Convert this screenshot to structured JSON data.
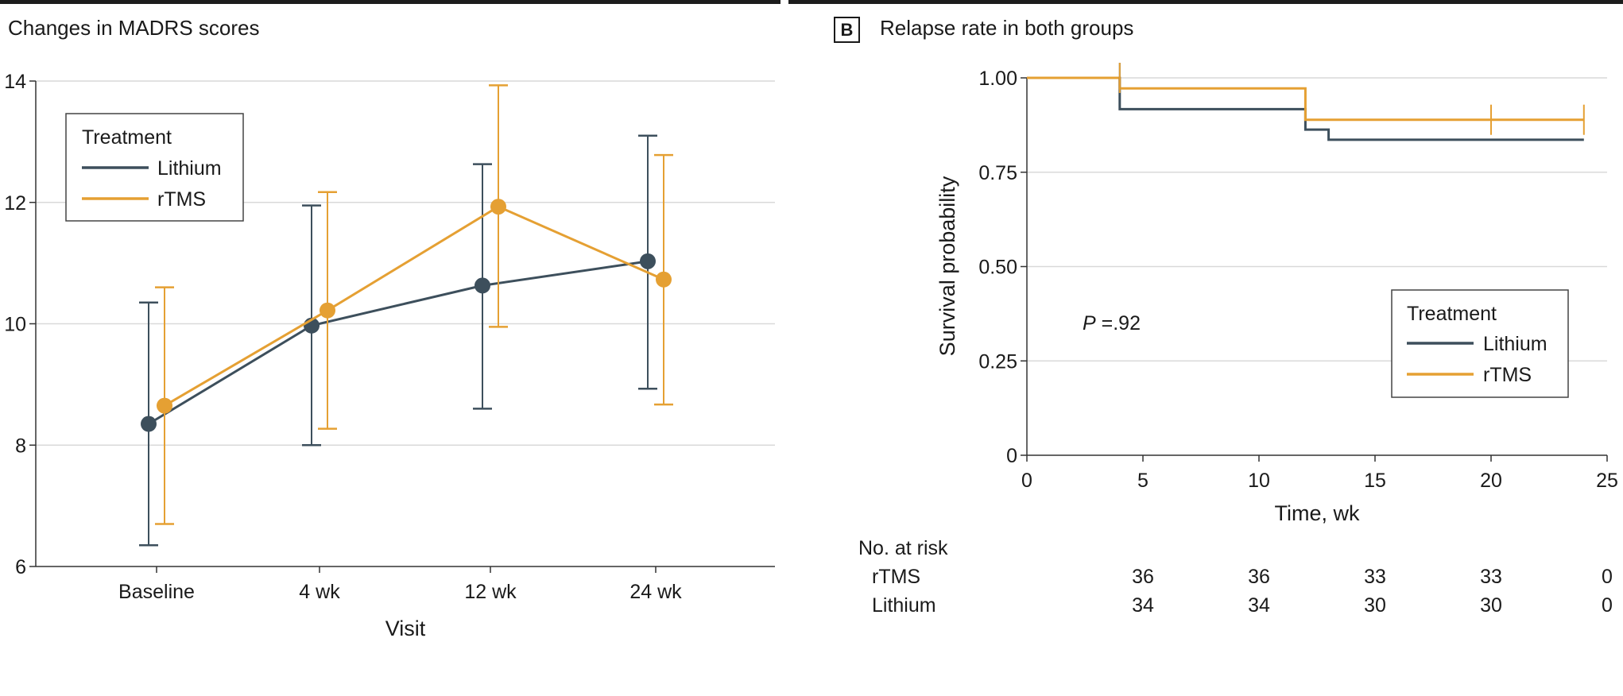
{
  "colors": {
    "lithium": "#3d4f5c",
    "rtms": "#e5a033",
    "grid": "#d9d9d9",
    "axis": "#333333",
    "text": "#1a1a1a"
  },
  "panelA": {
    "title": "Changes in MADRS scores"
  },
  "panelB": {
    "letter": "B",
    "title": "Relapse rate in both groups",
    "pvalue_label": "P",
    "pvalue_text": " =.92"
  },
  "chart_data": [
    {
      "type": "line",
      "title": "Changes in MADRS scores",
      "xlabel": "Visit",
      "ylabel": "",
      "categories": [
        "Baseline",
        "4 wk",
        "12 wk",
        "24 wk"
      ],
      "ylim": [
        6,
        14
      ],
      "yticks": [
        6,
        8,
        10,
        12,
        14
      ],
      "grid": true,
      "legend": {
        "title": "Treatment",
        "position": "top-left"
      },
      "series": [
        {
          "name": "Lithium",
          "color": "#3d4f5c",
          "values": [
            8.35,
            9.97,
            10.63,
            11.03
          ],
          "lower": [
            6.35,
            8.0,
            8.6,
            8.93
          ],
          "upper": [
            10.35,
            11.95,
            12.63,
            13.1
          ]
        },
        {
          "name": "rTMS",
          "color": "#e5a033",
          "values": [
            8.65,
            10.22,
            11.93,
            10.73
          ],
          "lower": [
            6.7,
            8.27,
            9.95,
            8.67
          ],
          "upper": [
            10.6,
            12.17,
            13.93,
            12.78
          ]
        }
      ]
    },
    {
      "type": "line",
      "subtype": "kaplan-meier",
      "title": "Relapse rate in both groups",
      "xlabel": "Time, wk",
      "ylabel": "Survival probability",
      "xlim": [
        0,
        25
      ],
      "ylim": [
        0,
        1
      ],
      "xticks": [
        0,
        5,
        10,
        15,
        20,
        25
      ],
      "yticks": [
        {
          "value": 0,
          "label": "0"
        },
        {
          "value": 0.25,
          "label": "0.25"
        },
        {
          "value": 0.5,
          "label": "0.50"
        },
        {
          "value": 0.75,
          "label": "0.75"
        },
        {
          "value": 1,
          "label": "1.00"
        }
      ],
      "grid": true,
      "legend": {
        "title": "Treatment",
        "position": "center-right"
      },
      "series": [
        {
          "name": "Lithium",
          "color": "#3d4f5c",
          "steps": [
            [
              0,
              1.0
            ],
            [
              4,
              0.917
            ],
            [
              12,
              0.863
            ],
            [
              13,
              0.836
            ],
            [
              24,
              0.836
            ]
          ],
          "censored": [
            [
              4,
              1.0
            ]
          ]
        },
        {
          "name": "rTMS",
          "color": "#e5a033",
          "steps": [
            [
              0,
              1.0
            ],
            [
              4,
              0.972
            ],
            [
              12,
              0.889
            ],
            [
              24,
              0.889
            ]
          ],
          "censored": [
            [
              20,
              0.889
            ],
            [
              24,
              0.889
            ],
            [
              4,
              1.0
            ]
          ]
        }
      ],
      "annotation": "P =.92",
      "risk_table": {
        "title": "No. at risk",
        "times": [
          5,
          10,
          15,
          20,
          25
        ],
        "rows": [
          {
            "name": "rTMS",
            "values": [
              36,
              36,
              33,
              33,
              0
            ]
          },
          {
            "name": "Lithium",
            "values": [
              34,
              34,
              30,
              30,
              0
            ]
          }
        ]
      }
    }
  ]
}
